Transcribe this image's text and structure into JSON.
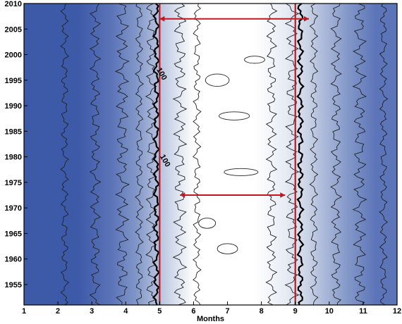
{
  "chart_data": {
    "type": "heatmap",
    "title": "",
    "xlabel": "Months",
    "ylabel": "",
    "xlim": [
      1,
      12
    ],
    "ylim": [
      1951,
      2010
    ],
    "x_ticks": [
      "1",
      "2",
      "3",
      "4",
      "5",
      "6",
      "7",
      "8",
      "9",
      "10",
      "11",
      "12"
    ],
    "y_ticks": [
      "1955",
      "1960",
      "1965",
      "1970",
      "1975",
      "1980",
      "1985",
      "1990",
      "1995",
      "2000",
      "2005",
      "2010"
    ],
    "colormap": [
      "#3d5aa8",
      "#5c74b8",
      "#8096c8",
      "#a8b6d8",
      "#cdd6e8",
      "#e7ecf4",
      "#ffffff"
    ],
    "grid": false,
    "contour_labels": [
      {
        "text": "100",
        "x": 5.0,
        "y": 1996
      },
      {
        "text": "100",
        "x": 5.1,
        "y": 1979
      }
    ],
    "verticals": [
      {
        "x": 5.0,
        "color": "#c0181e"
      },
      {
        "x": 9.0,
        "color": "#c0181e"
      }
    ],
    "arrows": [
      {
        "from": [
          5.0,
          2007
        ],
        "to": [
          9.4,
          2007
        ],
        "color": "#c0181e",
        "double": true
      },
      {
        "from": [
          5.6,
          1972.5
        ],
        "to": [
          8.7,
          1972.5
        ],
        "color": "#c0181e",
        "double": true
      }
    ]
  }
}
